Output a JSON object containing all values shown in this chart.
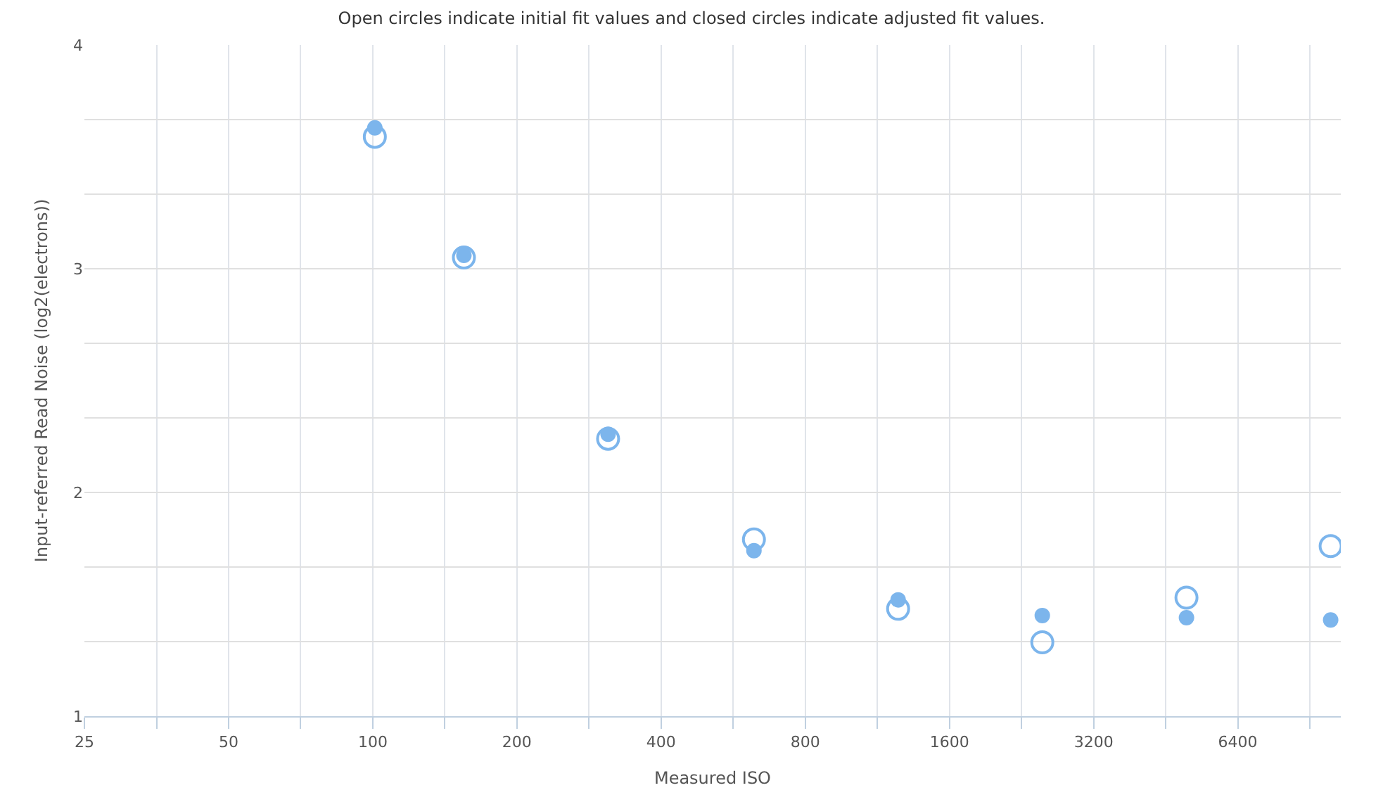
{
  "chart_data": {
    "type": "scatter",
    "title": "Open circles indicate initial fit values and closed circles indicate adjusted fit values.",
    "xlabel": "Measured ISO",
    "ylabel": "Input-referred Read Noise (log2(electrons))",
    "log": "x",
    "x": [
      101,
      155,
      310,
      625,
      1250,
      2500,
      5000,
      10000
    ],
    "series": [
      {
        "color": "#7cb5ec",
        "marker": "circle-open",
        "values": [
          3.59,
          3.05,
          2.24,
          1.79,
          1.48,
          1.33,
          1.53,
          1.76
        ]
      },
      {
        "color": "#7cb5ec",
        "marker": "circle",
        "values": [
          3.63,
          3.06,
          2.26,
          1.74,
          1.52,
          1.45,
          1.44,
          1.43
        ]
      }
    ],
    "xlim": [
      25,
      10500
    ],
    "xticks": [
      25,
      {
        "value": 35.36,
        "label": null
      },
      50,
      {
        "value": 70.71,
        "label": null
      },
      100,
      {
        "value": 141.4,
        "label": null
      },
      200,
      {
        "value": 282.8,
        "label": null
      },
      400,
      {
        "value": 565.7,
        "label": null
      },
      800,
      {
        "value": 1131,
        "label": null
      },
      1600,
      {
        "value": 2263,
        "label": null
      },
      3200,
      {
        "value": 4525,
        "label": null
      },
      6400,
      {
        "value": 9051,
        "label": null
      }
    ],
    "ylim": [
      1,
      4
    ],
    "yticks": [
      1,
      {
        "value": 1.333,
        "label": null
      },
      {
        "value": 1.667,
        "label": null
      },
      2,
      {
        "value": 2.333,
        "label": null
      },
      {
        "value": 2.667,
        "label": null
      },
      3,
      {
        "value": 3.333,
        "label": null
      },
      {
        "value": 3.667,
        "label": null
      },
      4
    ],
    "grid": true
  }
}
